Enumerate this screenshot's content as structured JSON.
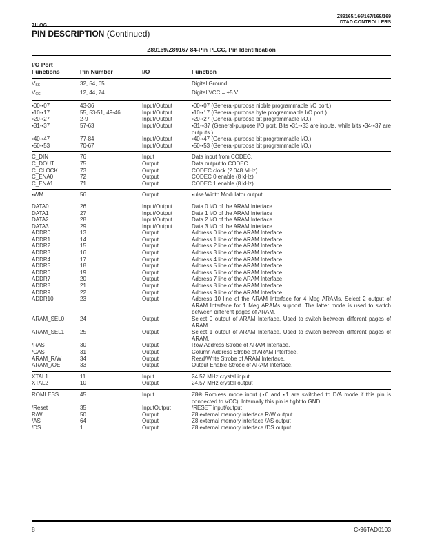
{
  "header": {
    "brand": "ZILOG",
    "product_line1": "Z89165/166/167/168/169",
    "product_line2": "DTAD CONTROLLERS"
  },
  "section": {
    "title_bold": "PIN DESCRIPTION",
    "title_rest": " (Continued)"
  },
  "table": {
    "title": "Z89169/Z89167 84-Pin PLCC, Pin Identification",
    "headers": {
      "col1_line1": "I/O  Port",
      "col1_line2": "Functions",
      "col2": "Pin Number",
      "col3": "I/O",
      "col4": "Function"
    },
    "groups": [
      [
        {
          "name": "V",
          "sub": "SS",
          "pin": "32, 54, 65",
          "io": "",
          "fn": "Digital Ground"
        },
        {
          "name": "V",
          "sub": "CC",
          "pin": "12, 44, 74",
          "io": "",
          "fn": "Digital VCC = +5 V"
        }
      ],
      [
        {
          "name": "▪00-▪07",
          "pin": "43-36",
          "io": "Input/Output",
          "fn": "▪00-▪07 (General-purpose nibble programmable I/O port.)"
        },
        {
          "name": "▪10-▪17",
          "pin": "55, 53-51, 49-46",
          "io": "Input/Output",
          "fn": "▪10-▪17 (General-purpose byte programmable I/O port.)"
        },
        {
          "name": "▪20-▪27",
          "pin": "2-9",
          "io": "Input/Output",
          "fn": "▪20-▪27 (General-purpose bit programmable I/O.)"
        },
        {
          "name": "▪31-▪37",
          "pin": "57-63",
          "io": "Input/Output",
          "fn": "▪31-▪37 (General-purpose I/O port. Bits ▪31-▪33 are inputs, while bits ▪34-▪37 are outputs.)"
        },
        {
          "name": "▪40-▪47",
          "pin": "77-84",
          "io": "Input/Output",
          "fn": "▪40-▪47 (General-purpose bit programmable I/O.)"
        },
        {
          "name": "▪50-▪53",
          "pin": "70-67",
          "io": "Input/Output",
          "fn": "▪50-▪53 (General-purpose bit programmable I/O.)"
        }
      ],
      [
        {
          "name": "C_DIN",
          "pin": "76",
          "io": "Input",
          "fn": "Data input from CODEC."
        },
        {
          "name": "C_DOUT",
          "pin": "75",
          "io": "Output",
          "fn": "Data output to CODEC."
        },
        {
          "name": "C_CLOCK",
          "pin": "73",
          "io": "Output",
          "fn": "CODEC clock (2.048 MHz)"
        },
        {
          "name": "C_ENA0",
          "pin": "72",
          "io": "Output",
          "fn": "CODEC 0 enable (8 kHz)"
        },
        {
          "name": "C_ENA1",
          "pin": "71",
          "io": "Output",
          "fn": "CODEC 1 enable (8 kHz)"
        }
      ],
      [
        {
          "name": "▪WM",
          "pin": "56",
          "io": "Output",
          "fn": "▪ulse Width Modulator output"
        }
      ],
      [
        {
          "name": "DATA0",
          "pin": "26",
          "io": "Input/Output",
          "fn": "Data 0 I/O of the ARAM Interface"
        },
        {
          "name": "DATA1",
          "pin": "27",
          "io": "Input/Output",
          "fn": "Data 1 I/O of the ARAM Interface"
        },
        {
          "name": "DATA2",
          "pin": "28",
          "io": "Input/Output",
          "fn": "Data 2 I/O of the ARAM Interface"
        },
        {
          "name": "DATA3",
          "pin": "29",
          "io": "Input/Output",
          "fn": "Data 3 I/O of the ARAM Interface"
        },
        {
          "name": "ADDR0",
          "pin": "13",
          "io": "Output",
          "fn": "Address 0 line of the ARAM Interface"
        },
        {
          "name": "ADDR1",
          "pin": "14",
          "io": "Output",
          "fn": "Address 1 line of the ARAM Interface"
        },
        {
          "name": "ADDR2",
          "pin": "15",
          "io": "Output",
          "fn": "Address 2 line of the ARAM Interface"
        },
        {
          "name": "ADDR3",
          "pin": "16",
          "io": "Output",
          "fn": "Address 3 line of the ARAM Interface"
        },
        {
          "name": "ADDR4",
          "pin": "17",
          "io": "Output",
          "fn": "Address 4 line of the ARAM Interface"
        },
        {
          "name": "ADDR5",
          "pin": "18",
          "io": "Output",
          "fn": "Address 5 line of the ARAM Interface"
        },
        {
          "name": "ADDR6",
          "pin": "19",
          "io": "Output",
          "fn": "Address 6 line of the ARAM Interface"
        },
        {
          "name": "ADDR7",
          "pin": "20",
          "io": "Output",
          "fn": "Address 7 line of the ARAM Interface"
        },
        {
          "name": "ADDR8",
          "pin": "21",
          "io": "Output",
          "fn": "Address 8 line of the ARAM Interface"
        },
        {
          "name": "ADDR9",
          "pin": "22",
          "io": "Output",
          "fn": "Address 9 line of the ARAM Interface"
        },
        {
          "name": "ADDR10",
          "pin": "23",
          "io": "Output",
          "fn": "Address 10 line of the ARAM Interface for 4 Meg ARAMs. Select 2 output of ARAM Interface for 1 Meg ARAMs support. The latter mode is used to switch between different pages of ARAM."
        },
        {
          "name": "ARAM_SEL0",
          "pin": "24",
          "io": "Output",
          "fn": "Select 0 output of ARAM Interface. Used to switch between different pages of ARAM."
        },
        {
          "name": "ARAM_SEL1",
          "pin": "25",
          "io": "Output",
          "fn": "Select 1 output of ARAM Interface. Used to switch  between different pages of ARAM."
        },
        {
          "name": "/RAS",
          "pin": "30",
          "io": "Output",
          "fn": "Row Address Strobe of ARAM Interface."
        },
        {
          "name": "/CAS",
          "pin": "31",
          "io": "Output",
          "fn": "Column Address Strobe of ARAM Interface."
        },
        {
          "name": "ARAM_R/W",
          "pin": "34",
          "io": "Output",
          "fn": "Read/Write Strobe of ARAM Interface."
        },
        {
          "name": "ARAM_/OE",
          "pin": "33",
          "io": "Output",
          "fn": "Output Enable Strobe of ARAM Interface."
        }
      ],
      [
        {
          "name": "XTAL1",
          "pin": "11",
          "io": "Input",
          "fn": "24.57 MHz crystal input"
        },
        {
          "name": "XTAL2",
          "pin": "10",
          "io": "Output",
          "fn": "24.57 MHz crystal output"
        }
      ],
      [
        {
          "name": "ROMLESS",
          "pin": "45",
          "io": "Input",
          "fn": "Z8® Romless mode input (▪0 and ▪1 are switched to D/A mode if this pin is connected to VCC). Internally this pin is tight to GND."
        },
        {
          "name": "/Reset",
          "pin": "35",
          "io": "InputOutput",
          "fn": "/RESET input/output"
        },
        {
          "name": "R/W",
          "pin": "50",
          "io": "Output",
          "fn": "Z8 external memory interface R/W output"
        },
        {
          "name": "/AS",
          "pin": "64",
          "io": "Output",
          "fn": "Z8 external memory interface /AS output"
        },
        {
          "name": "/DS",
          "pin": "1",
          "io": "Output",
          "fn": "Z8 external memory interface /DS output"
        }
      ]
    ]
  },
  "footer": {
    "page_number": "8",
    "doc_code": "C▪96TAD0103"
  }
}
